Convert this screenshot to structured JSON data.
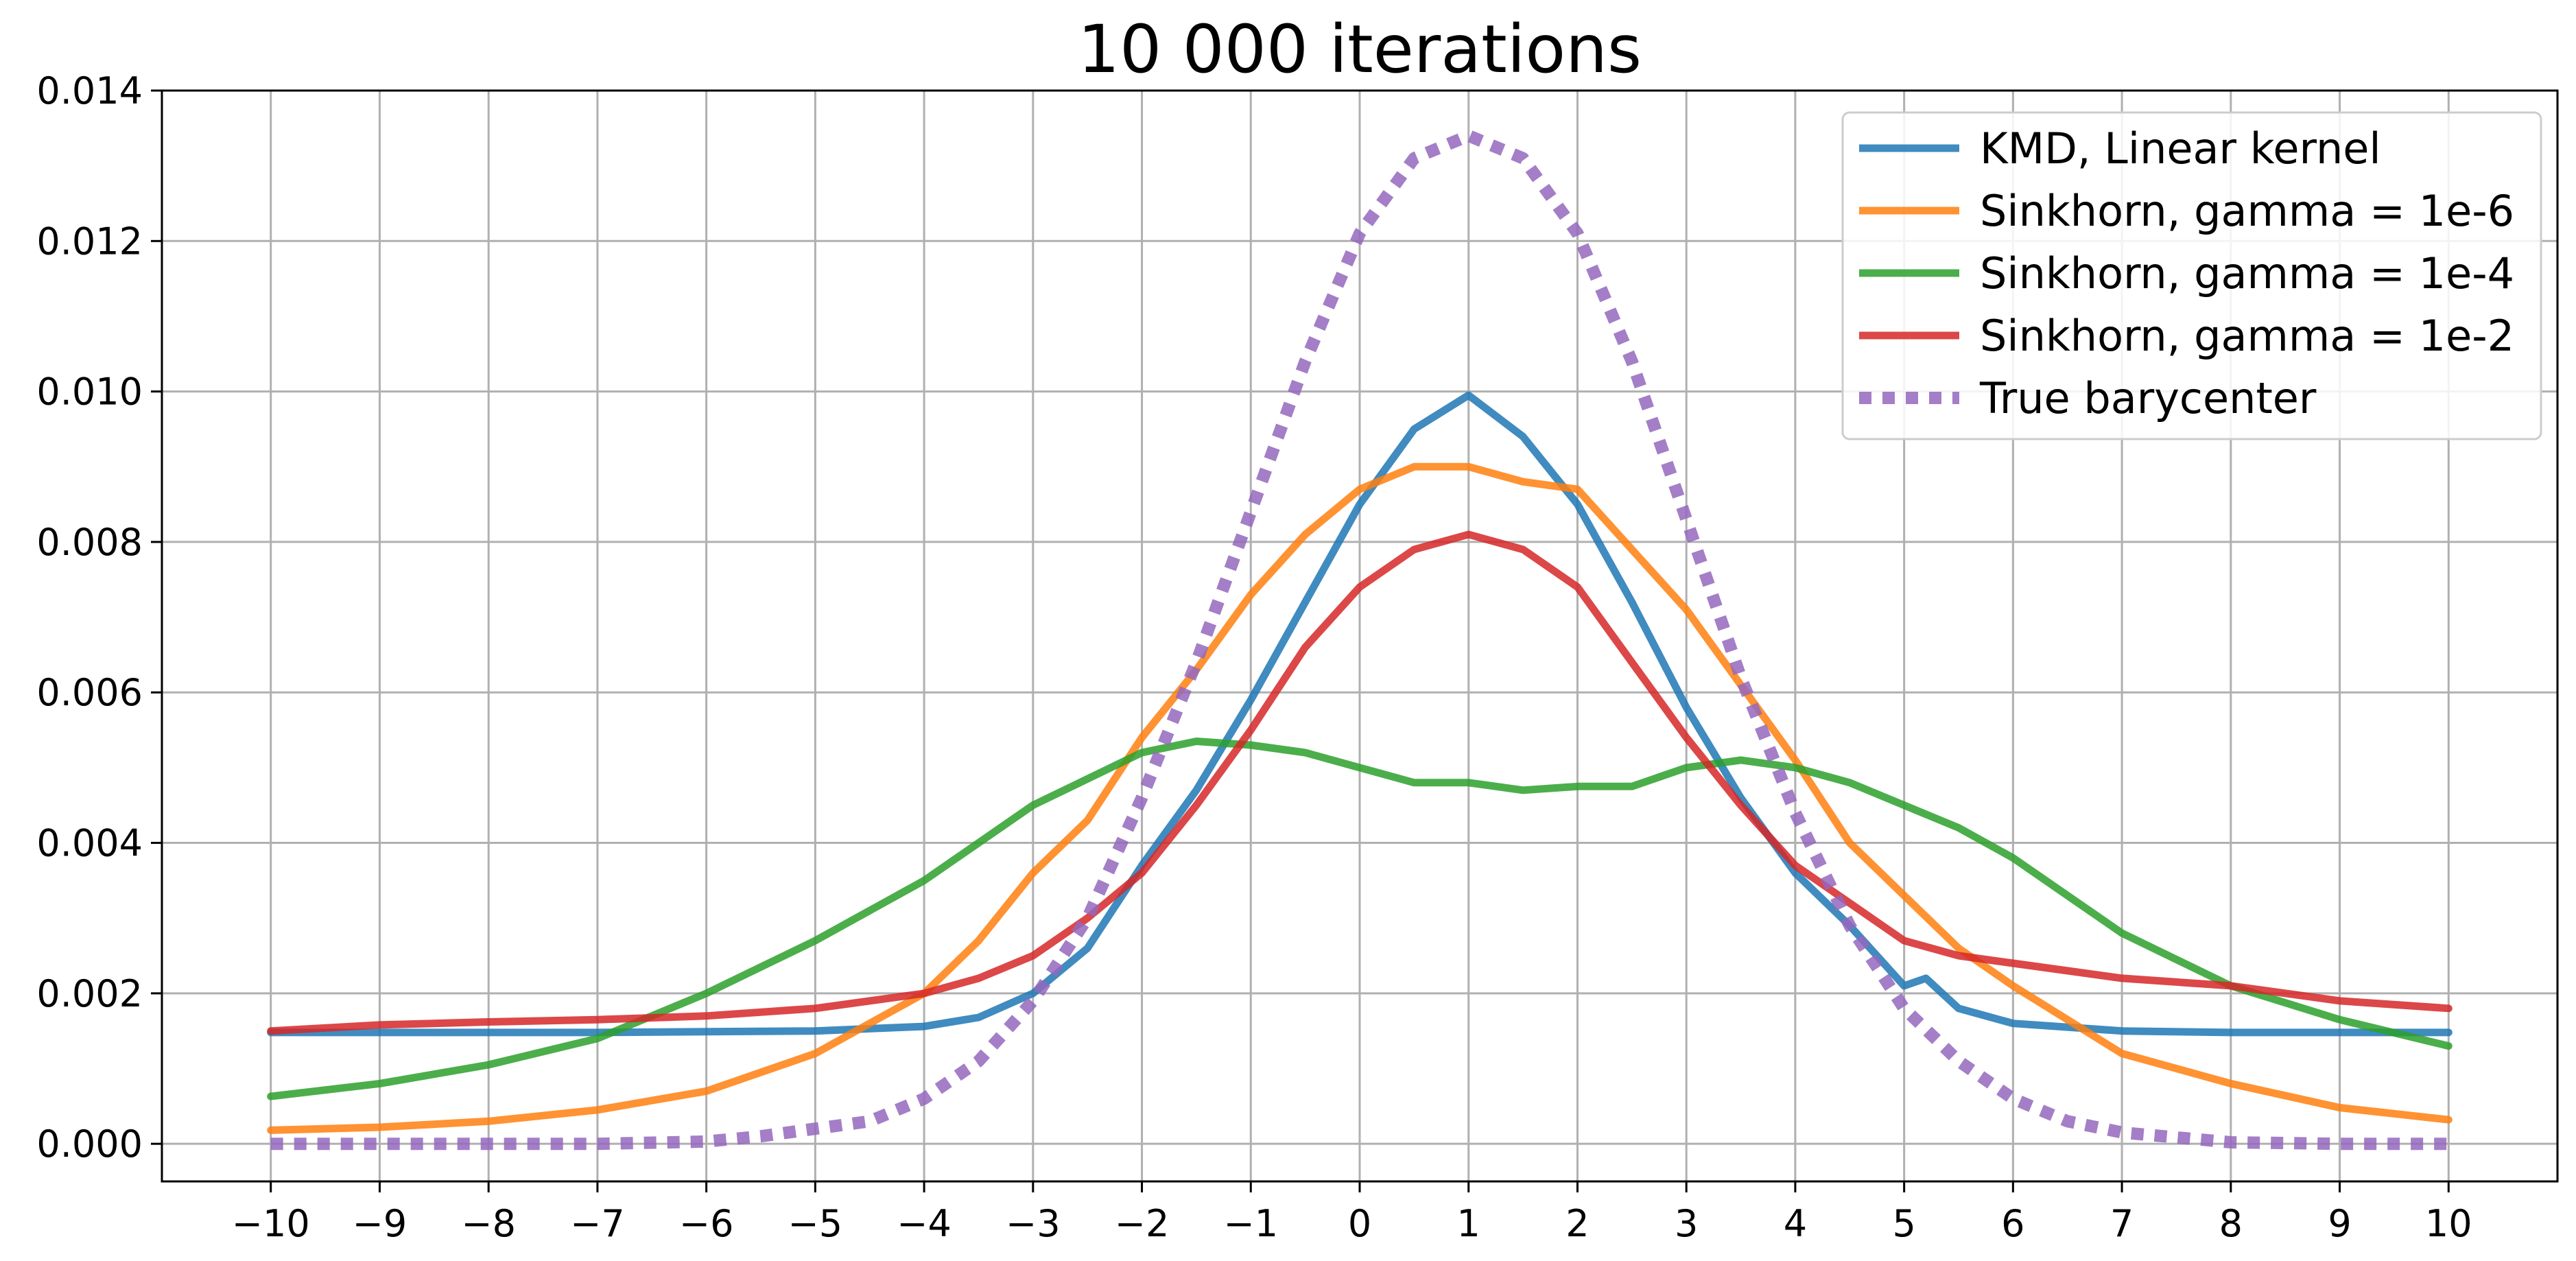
{
  "chart_data": {
    "type": "line",
    "title": "10 000 iterations",
    "xlabel": "",
    "ylabel": "",
    "xlim": [
      -11,
      11
    ],
    "ylim": [
      -0.0005,
      0.014
    ],
    "grid": true,
    "legend_position": "top-right",
    "x_ticks": [
      -10,
      -9,
      -8,
      -7,
      -6,
      -5,
      -4,
      -3,
      -2,
      -1,
      0,
      1,
      2,
      3,
      4,
      5,
      6,
      7,
      8,
      9,
      10
    ],
    "x_tick_labels": [
      "−10",
      "−9",
      "−8",
      "−7",
      "−6",
      "−5",
      "−4",
      "−3",
      "−2",
      "−1",
      "0",
      "1",
      "2",
      "3",
      "4",
      "5",
      "6",
      "7",
      "8",
      "9",
      "10"
    ],
    "y_ticks": [
      0,
      0.002,
      0.004,
      0.006,
      0.008,
      0.01,
      0.012,
      0.014
    ],
    "y_tick_labels": [
      "0.000",
      "0.002",
      "0.004",
      "0.006",
      "0.008",
      "0.010",
      "0.012",
      "0.014"
    ],
    "series": [
      {
        "name": "KMD, Linear kernel",
        "color": "#1f77b4",
        "style": "solid",
        "x": [
          -10,
          -9,
          -8,
          -7,
          -6,
          -5,
          -4,
          -3.5,
          -3,
          -2.5,
          -2,
          -1.5,
          -1,
          -0.5,
          0,
          0.5,
          1,
          1.5,
          2,
          2.5,
          3,
          3.5,
          4,
          4.5,
          5,
          5.2,
          5.5,
          6,
          7,
          8,
          9,
          10
        ],
        "y": [
          0.00148,
          0.00148,
          0.00148,
          0.00148,
          0.00149,
          0.0015,
          0.00156,
          0.00168,
          0.002,
          0.0026,
          0.0037,
          0.0047,
          0.0059,
          0.0072,
          0.0085,
          0.0095,
          0.00995,
          0.0094,
          0.0085,
          0.0072,
          0.0058,
          0.0046,
          0.0036,
          0.0029,
          0.0021,
          0.0022,
          0.0018,
          0.0016,
          0.0015,
          0.00148,
          0.00148,
          0.00148
        ]
      },
      {
        "name": "Sinkhorn, gamma = 1e-6",
        "color": "#ff7f0e",
        "style": "solid",
        "x": [
          -10,
          -9,
          -8,
          -7,
          -6,
          -5,
          -4.5,
          -4,
          -3.5,
          -3,
          -2.5,
          -2,
          -1.5,
          -1,
          -0.5,
          0,
          0.5,
          1,
          1.5,
          2,
          2.5,
          3,
          3.5,
          4,
          4.5,
          5,
          5.5,
          6,
          7,
          8,
          9,
          10
        ],
        "y": [
          0.00018,
          0.00022,
          0.0003,
          0.00045,
          0.0007,
          0.0012,
          0.0016,
          0.002,
          0.0027,
          0.0036,
          0.0043,
          0.0054,
          0.0063,
          0.0073,
          0.0081,
          0.0087,
          0.009,
          0.009,
          0.0088,
          0.0087,
          0.0079,
          0.0071,
          0.0061,
          0.0051,
          0.004,
          0.0033,
          0.0026,
          0.0021,
          0.0012,
          0.0008,
          0.00048,
          0.00032
        ]
      },
      {
        "name": "Sinkhorn, gamma = 1e-4",
        "color": "#2ca02c",
        "style": "solid",
        "x": [
          -10,
          -9,
          -8,
          -7,
          -6,
          -5,
          -4,
          -3,
          -2,
          -1.5,
          -1,
          -0.5,
          0,
          0.5,
          1,
          1.5,
          2,
          2.5,
          3,
          3.5,
          4,
          4.5,
          5,
          5.5,
          6,
          6.5,
          7,
          8,
          9,
          10
        ],
        "y": [
          0.00063,
          0.0008,
          0.00105,
          0.0014,
          0.002,
          0.0027,
          0.0035,
          0.0045,
          0.0052,
          0.00535,
          0.0053,
          0.0052,
          0.005,
          0.0048,
          0.0048,
          0.0047,
          0.00475,
          0.00475,
          0.005,
          0.0051,
          0.005,
          0.0048,
          0.0045,
          0.0042,
          0.0038,
          0.0033,
          0.0028,
          0.0021,
          0.00165,
          0.0013
        ]
      },
      {
        "name": "Sinkhorn, gamma = 1e-2",
        "color": "#d62728",
        "style": "solid",
        "x": [
          -10,
          -9,
          -8,
          -7,
          -6,
          -5,
          -4,
          -3.5,
          -3,
          -2.5,
          -2,
          -1.5,
          -1,
          -0.5,
          0,
          0.5,
          1,
          1.5,
          2,
          2.5,
          3,
          3.5,
          4,
          4.5,
          5,
          5.5,
          6,
          7,
          8,
          9,
          10
        ],
        "y": [
          0.0015,
          0.00158,
          0.00162,
          0.00165,
          0.0017,
          0.0018,
          0.002,
          0.0022,
          0.0025,
          0.003,
          0.0036,
          0.0045,
          0.0055,
          0.0066,
          0.0074,
          0.0079,
          0.0081,
          0.0079,
          0.0074,
          0.0064,
          0.0054,
          0.0045,
          0.0037,
          0.0032,
          0.0027,
          0.0025,
          0.0024,
          0.0022,
          0.0021,
          0.0019,
          0.0018
        ]
      },
      {
        "name": "True barycenter",
        "color": "#9467bd",
        "style": "dotted",
        "x": [
          -10,
          -9,
          -8,
          -7,
          -6,
          -5.5,
          -5,
          -4.5,
          -4,
          -3.5,
          -3,
          -2.5,
          -2,
          -1.5,
          -1,
          -0.5,
          0,
          0.5,
          1,
          1.5,
          2,
          2.5,
          3,
          3.5,
          4,
          4.5,
          5,
          5.5,
          6,
          6.5,
          7,
          8,
          9,
          10
        ],
        "y": [
          0,
          0,
          0,
          0,
          3e-05,
          0.0001,
          0.0002,
          0.0003,
          0.0006,
          0.0011,
          0.0019,
          0.003,
          0.0046,
          0.0064,
          0.0084,
          0.0104,
          0.0121,
          0.0131,
          0.0134,
          0.0131,
          0.0121,
          0.0104,
          0.0083,
          0.0062,
          0.0044,
          0.0029,
          0.0018,
          0.0011,
          0.0006,
          0.0003,
          0.00015,
          2e-05,
          0,
          0
        ]
      }
    ]
  }
}
